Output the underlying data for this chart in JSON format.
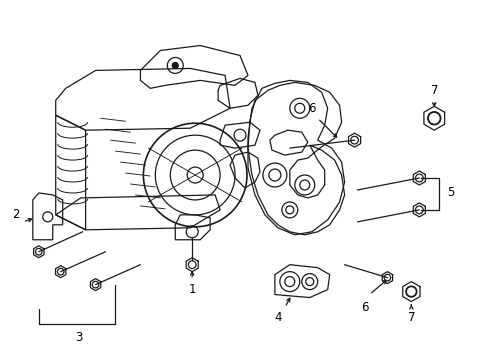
{
  "background_color": "#ffffff",
  "fig_width": 4.89,
  "fig_height": 3.6,
  "dpi": 100,
  "line_color": "#1a1a1a",
  "label_color": "#000000",
  "label_fontsize": 8.5,
  "lw": 0.9
}
